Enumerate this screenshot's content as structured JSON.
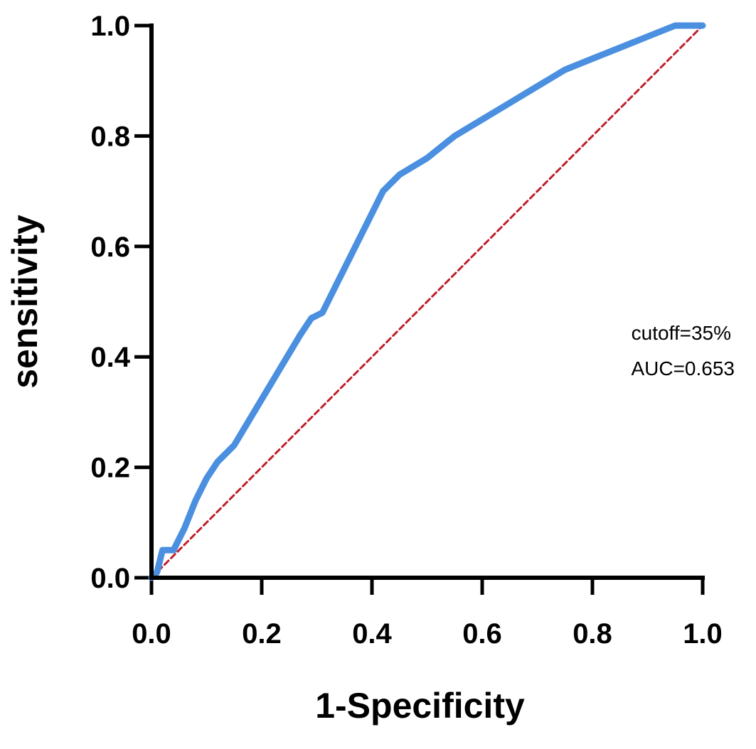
{
  "chart_data": {
    "type": "line",
    "title": "",
    "xlabel": "1-Specificity",
    "ylabel": "sensitivity",
    "xlim": [
      0,
      1
    ],
    "ylim": [
      0,
      1
    ],
    "xticks": [
      "0.0",
      "0.2",
      "0.4",
      "0.6",
      "0.8",
      "1.0"
    ],
    "yticks": [
      "0.0",
      "0.2",
      "0.4",
      "0.6",
      "0.8",
      "1.0"
    ],
    "grid": false,
    "legend": "none",
    "annotations": [
      "cutoff=35%",
      "AUC=0.653"
    ],
    "series": [
      {
        "color": "#4a8fe0",
        "style": "solid",
        "x": [
          0.0,
          0.01,
          0.02,
          0.04,
          0.06,
          0.08,
          0.1,
          0.12,
          0.15,
          0.18,
          0.21,
          0.24,
          0.27,
          0.29,
          0.31,
          0.34,
          0.37,
          0.4,
          0.42,
          0.45,
          0.5,
          0.55,
          0.6,
          0.65,
          0.7,
          0.75,
          0.8,
          0.85,
          0.9,
          0.95,
          1.0
        ],
        "y": [
          0.0,
          0.01,
          0.05,
          0.05,
          0.09,
          0.14,
          0.18,
          0.21,
          0.24,
          0.29,
          0.34,
          0.39,
          0.44,
          0.47,
          0.48,
          0.54,
          0.6,
          0.66,
          0.7,
          0.73,
          0.76,
          0.8,
          0.83,
          0.86,
          0.89,
          0.92,
          0.94,
          0.96,
          0.98,
          1.0,
          1.0
        ]
      },
      {
        "color": "#c0202a",
        "style": "dashed",
        "x": [
          0.0,
          1.0
        ],
        "y": [
          0.0,
          1.0
        ]
      }
    ]
  }
}
